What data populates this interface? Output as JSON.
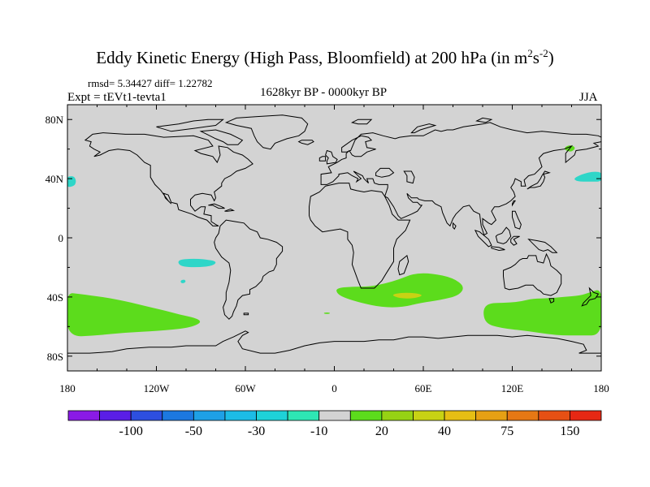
{
  "header": {
    "title_main": "Eddy Kinetic Energy (High Pass, Bloomfield) at 200 hPa (in m",
    "title_sup1": "2",
    "title_mid": "s",
    "title_sup2": "-2",
    "title_end": ")",
    "stats": "rmsd= 5.34427 diff= 1.22782",
    "experiment": "Expt = tEVt1-tevta1",
    "period": "1628kyr BP - 0000kyr BP",
    "season": "JJA"
  },
  "colors": {
    "land_background": "#d3d3d3",
    "coastline": "#000000",
    "cyan_anomaly": "#2ed6c8",
    "green_anomaly": "#5cdc1c",
    "yellow_anomaly": "#c8d214"
  },
  "chart_data": {
    "type": "heatmap",
    "title": "Eddy Kinetic Energy (High Pass, Bloomfield) at 200 hPa (in m2s-2)",
    "subtitle": "1628kyr BP - 0000kyr BP",
    "projection": "cylindrical-equidistant",
    "xlim": [
      -180,
      180
    ],
    "ylim": [
      -90,
      90
    ],
    "x_ticks": [
      {
        "value": -180,
        "label": "180"
      },
      {
        "value": -120,
        "label": "120W"
      },
      {
        "value": -60,
        "label": "60W"
      },
      {
        "value": 0,
        "label": "0"
      },
      {
        "value": 60,
        "label": "60E"
      },
      {
        "value": 120,
        "label": "120E"
      },
      {
        "value": 180,
        "label": "180"
      }
    ],
    "y_ticks": [
      {
        "value": 80,
        "label": "80N"
      },
      {
        "value": 40,
        "label": "40N"
      },
      {
        "value": 0,
        "label": "0"
      },
      {
        "value": -40,
        "label": "40S"
      },
      {
        "value": -80,
        "label": "80S"
      }
    ],
    "colorbar": {
      "colors": [
        "#8a1ae6",
        "#5a1ee6",
        "#2d4fe0",
        "#1c78e0",
        "#1ea0e6",
        "#1cbce6",
        "#1ed2d8",
        "#2ee6b4",
        "#d3d3d3",
        "#5cdc1c",
        "#96d214",
        "#c8d214",
        "#e6be14",
        "#e6a014",
        "#e67814",
        "#e65014",
        "#e62814"
      ],
      "labels": [
        {
          "after_box": 2,
          "text": "-100"
        },
        {
          "after_box": 4,
          "text": "-50"
        },
        {
          "after_box": 6,
          "text": "-30"
        },
        {
          "after_box": 8,
          "text": "-10"
        },
        {
          "after_box": 10,
          "text": "20"
        },
        {
          "after_box": 12,
          "text": "40"
        },
        {
          "after_box": 14,
          "text": "75"
        },
        {
          "after_box": 16,
          "text": "150"
        }
      ]
    },
    "anomaly_regions": [
      {
        "name": "north-pacific-east-cyan",
        "range": "-30 to -10",
        "lon": [
          -180,
          -174
        ],
        "lat": [
          34,
          42
        ]
      },
      {
        "name": "south-pacific-cyan",
        "range": "-30 to -10",
        "lon": [
          -106,
          -78
        ],
        "lat": [
          -20,
          -14
        ]
      },
      {
        "name": "small-cyan-spot",
        "range": "-30 to -10",
        "lon": [
          -104,
          -100
        ],
        "lat": [
          -31,
          -28
        ]
      },
      {
        "name": "north-pacific-west-cyan",
        "range": "-30 to -10",
        "lon": [
          161,
          180
        ],
        "lat": [
          38,
          45
        ]
      },
      {
        "name": "kamchatka-green",
        "range": "10 to 20",
        "lon": [
          155,
          163
        ],
        "lat": [
          58,
          63
        ]
      },
      {
        "name": "southern-ocean-pacific-green",
        "range": "10 to 20",
        "lon": [
          -180,
          -89
        ],
        "lat": [
          -67,
          -37
        ]
      },
      {
        "name": "southern-ocean-indian-green",
        "range": "10 to 20",
        "lon": [
          1,
          88
        ],
        "lat": [
          -48,
          -24
        ]
      },
      {
        "name": "southern-ocean-indian-yellow",
        "range": "30 to 40",
        "lon": [
          38,
          60
        ],
        "lat": [
          -41,
          -37
        ]
      },
      {
        "name": "australia-south-green",
        "range": "10 to 20",
        "lon": [
          100,
          180
        ],
        "lat": [
          -66,
          -39
        ]
      },
      {
        "name": "south-atlantic-speck",
        "range": "10 to 20",
        "lon": [
          -7,
          -3
        ],
        "lat": [
          -52,
          -50
        ]
      }
    ]
  }
}
